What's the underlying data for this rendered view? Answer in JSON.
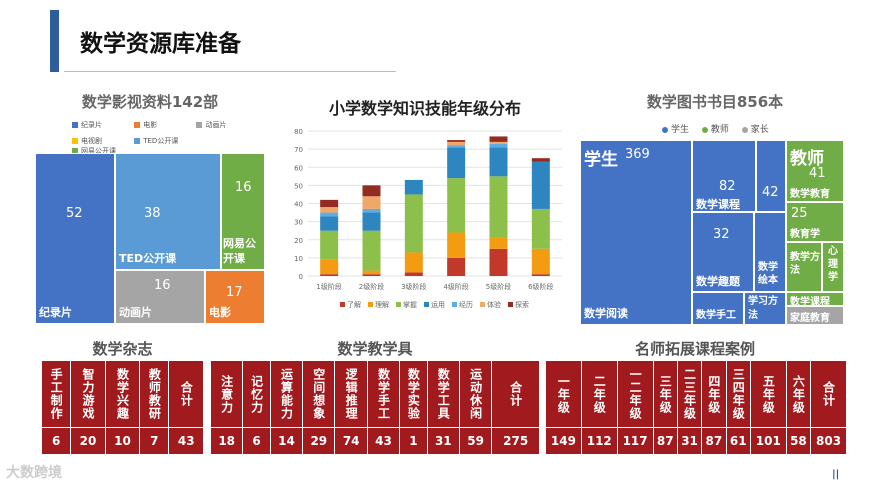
{
  "page": {
    "title": "数学资源库准备"
  },
  "video": {
    "title": "数学影视资料142部",
    "legend": [
      {
        "label": "纪录片",
        "color": "#4472c4"
      },
      {
        "label": "电影",
        "color": "#ed7d31"
      },
      {
        "label": "动画片",
        "color": "#a5a5a5"
      },
      {
        "label": "电视剧",
        "color": "#ffc000"
      },
      {
        "label": "TED公开课",
        "color": "#5b9bd5"
      },
      {
        "label": "网易公开课",
        "color": "#70ad47"
      }
    ],
    "cells": [
      {
        "label": "纪录片",
        "value": "52"
      },
      {
        "label": "TED公开课",
        "value": "38"
      },
      {
        "label": "网易公开课",
        "value": "16"
      },
      {
        "label": "动画片",
        "value": "16"
      },
      {
        "label": "电影",
        "value": "17"
      }
    ]
  },
  "chart_data": {
    "type": "bar",
    "stacked": true,
    "title": "小学数学知识技能年级分布",
    "categories": [
      "1级阶段",
      "2级阶段",
      "3级阶段",
      "4级阶段",
      "5级阶段",
      "6级阶段"
    ],
    "ylim": [
      0,
      80
    ],
    "yticks": [
      "0",
      "10",
      "20",
      "30",
      "40",
      "50",
      "60",
      "70",
      "80"
    ],
    "series": [
      {
        "name": "了解",
        "color": "#c0392b",
        "values": [
          1,
          1,
          2,
          10,
          15,
          1
        ]
      },
      {
        "name": "理解",
        "color": "#f39c12",
        "values": [
          8,
          2,
          11,
          14,
          6,
          14
        ]
      },
      {
        "name": "掌握",
        "color": "#8dc04a",
        "values": [
          16,
          22,
          32,
          30,
          34,
          22
        ]
      },
      {
        "name": "运用",
        "color": "#2e86c1",
        "values": [
          8,
          10,
          8,
          17,
          16,
          26
        ]
      },
      {
        "name": "经历",
        "color": "#5dade2",
        "values": [
          2,
          2,
          0,
          1,
          2,
          0
        ]
      },
      {
        "name": "体验",
        "color": "#f0a868",
        "values": [
          3,
          7,
          0,
          2,
          1,
          0
        ]
      },
      {
        "name": "探索",
        "color": "#922b21",
        "values": [
          4,
          6,
          0,
          1,
          3,
          2
        ]
      }
    ]
  },
  "books": {
    "title": "数学图书书目856本",
    "legend": [
      {
        "label": "学生",
        "color": "#4472c4"
      },
      {
        "label": "教师",
        "color": "#70ad47"
      },
      {
        "label": "家长",
        "color": "#a5a5a5"
      }
    ],
    "student_label": "学生",
    "student_value": "369",
    "course_value": "82",
    "course_label": "数学课程",
    "course_side_value": "42",
    "fun_value": "32",
    "fun_label": "数学趣题",
    "picture_label": "数学绘本",
    "reading_label": "数学阅读",
    "handcraft_label": "数学手工",
    "method_label": "学习方法",
    "teacher_label": "教师",
    "teacher_value": "41",
    "math_edu_label": "数学教育",
    "pedagogy_value": "25",
    "pedagogy_label": "教育学",
    "teaching_method_label": "教学方法",
    "psychology_label": "心理学",
    "math_course_label": "数学课程",
    "family_label": "家庭教育"
  },
  "magazines": {
    "title": "数学杂志",
    "headers": [
      "手工制作",
      "智力游戏",
      "数学兴趣",
      "教师教研",
      "合计"
    ],
    "values": [
      "6",
      "20",
      "10",
      "7",
      "43"
    ]
  },
  "tools": {
    "title": "数学教学具",
    "headers": [
      "注意力",
      "记忆力",
      "运算能力",
      "空间想象",
      "逻辑推理",
      "数学手工",
      "数学实验",
      "数学工具",
      "运动休闲",
      "合计"
    ],
    "values": [
      "18",
      "6",
      "14",
      "29",
      "74",
      "43",
      "1",
      "31",
      "59",
      "275"
    ]
  },
  "courses": {
    "title": "名师拓展课程案例",
    "headers": [
      "一年级",
      "二年级",
      "一二年级",
      "三年级",
      "二三年级",
      "四年级",
      "三四年级",
      "五年级",
      "六年级",
      "合计"
    ],
    "values": [
      "149",
      "112",
      "117",
      "87",
      "31",
      "87",
      "61",
      "101",
      "58",
      "803"
    ]
  },
  "footer": {
    "logo": "大数跨境",
    "pager": "||"
  }
}
